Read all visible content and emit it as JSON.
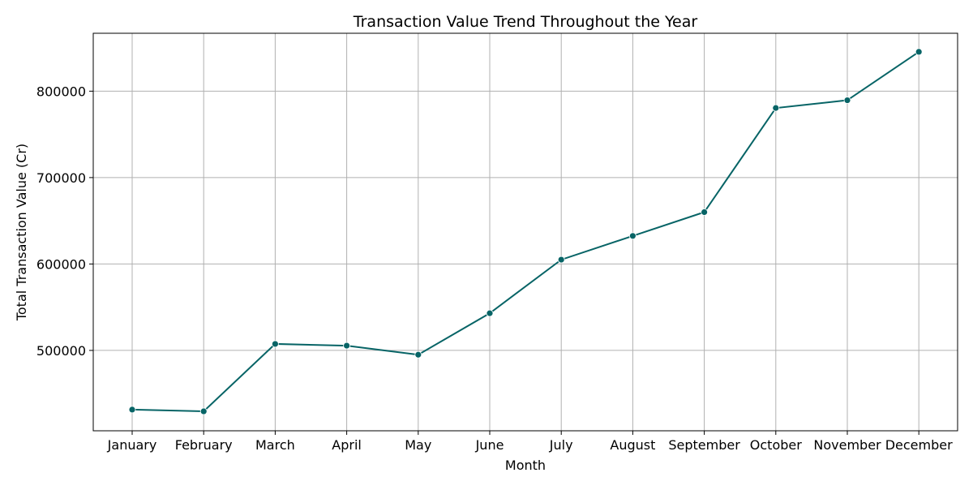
{
  "chart_data": {
    "type": "line",
    "title": "Transaction Value Trend Throughout the Year",
    "xlabel": "Month",
    "ylabel": "Total Transaction Value (Cr)",
    "categories": [
      "January",
      "February",
      "March",
      "April",
      "May",
      "June",
      "July",
      "August",
      "September",
      "October",
      "November",
      "December"
    ],
    "series": [
      {
        "values": [
          431500,
          429500,
          507500,
          505500,
          495000,
          543000,
          605000,
          632500,
          660000,
          780500,
          789500,
          845500
        ]
      }
    ],
    "ylim": [
      407000,
      867000
    ],
    "yticks": [
      500000,
      600000,
      700000,
      800000
    ],
    "grid": true,
    "legend": "none"
  },
  "colors": {
    "line": "#076466",
    "marker": "#076466",
    "grid": "#b0b0b0"
  }
}
